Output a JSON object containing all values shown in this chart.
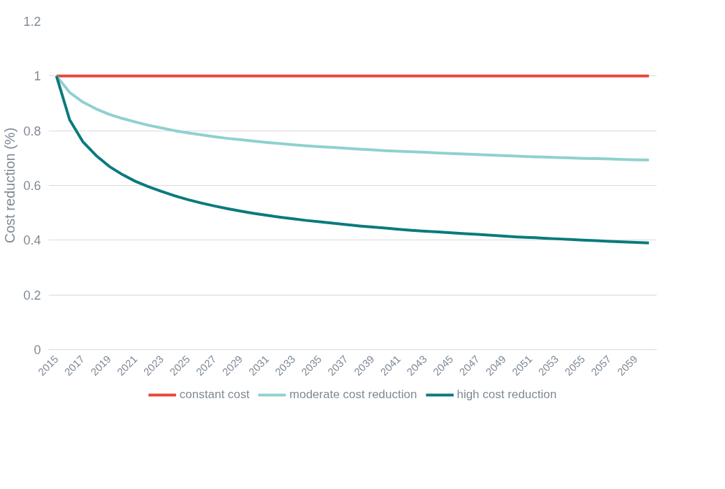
{
  "chart_data": {
    "type": "line",
    "ylabel": "Cost reduction (%)",
    "categories": [
      "2015",
      null,
      "2017",
      null,
      "2019",
      null,
      "2021",
      null,
      "2023",
      null,
      "2025",
      null,
      "2027",
      null,
      "2029",
      null,
      "2031",
      null,
      "2033",
      null,
      "2035",
      null,
      "2037",
      null,
      "2039",
      null,
      "2041",
      null,
      "2043",
      null,
      "2045",
      null,
      "2047",
      null,
      "2049",
      null,
      "2051",
      null,
      "2053",
      null,
      "2055",
      null,
      "2057",
      null,
      "2059",
      null
    ],
    "series": [
      {
        "name": "constant cost",
        "color": "#e8473c",
        "values": [
          1,
          1,
          1,
          1,
          1,
          1,
          1,
          1,
          1,
          1,
          1,
          1,
          1,
          1,
          1,
          1,
          1,
          1,
          1,
          1,
          1,
          1,
          1,
          1,
          1,
          1,
          1,
          1,
          1,
          1,
          1,
          1,
          1,
          1,
          1,
          1,
          1,
          1,
          1,
          1,
          1,
          1,
          1,
          1,
          1,
          1
        ]
      },
      {
        "name": "moderate cost reduction",
        "color": "#8fd1cf",
        "values": [
          1.0,
          0.94,
          0.905,
          0.88,
          0.86,
          0.845,
          0.832,
          0.82,
          0.81,
          0.8,
          0.792,
          0.785,
          0.778,
          0.772,
          0.767,
          0.762,
          0.757,
          0.753,
          0.749,
          0.745,
          0.742,
          0.739,
          0.736,
          0.733,
          0.73,
          0.727,
          0.725,
          0.723,
          0.721,
          0.719,
          0.717,
          0.715,
          0.713,
          0.711,
          0.709,
          0.707,
          0.705,
          0.704,
          0.702,
          0.701,
          0.699,
          0.698,
          0.697,
          0.695,
          0.694,
          0.693
        ]
      },
      {
        "name": "high cost reduction",
        "color": "#0a7a7e",
        "values": [
          1.0,
          0.84,
          0.76,
          0.71,
          0.67,
          0.64,
          0.615,
          0.595,
          0.578,
          0.562,
          0.548,
          0.536,
          0.525,
          0.515,
          0.506,
          0.498,
          0.491,
          0.484,
          0.478,
          0.472,
          0.467,
          0.462,
          0.457,
          0.452,
          0.448,
          0.444,
          0.44,
          0.436,
          0.433,
          0.43,
          0.427,
          0.424,
          0.421,
          0.418,
          0.415,
          0.412,
          0.41,
          0.407,
          0.405,
          0.403,
          0.4,
          0.398,
          0.396,
          0.394,
          0.392,
          0.39
        ]
      }
    ],
    "ylim": [
      0,
      1.2
    ],
    "yticks": [
      0,
      0.2,
      0.4,
      0.6,
      0.8,
      1,
      1.2
    ],
    "grid": "y",
    "legend": "bottom",
    "marker": "none",
    "line_style": "solid"
  }
}
